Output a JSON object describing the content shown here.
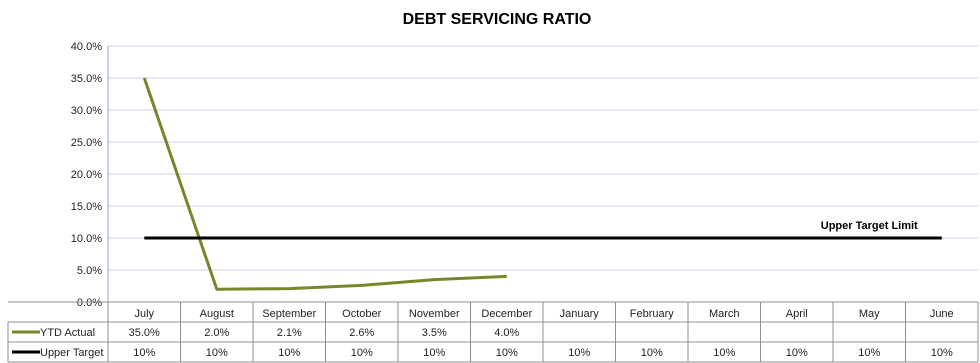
{
  "chart_data": {
    "type": "line",
    "title": "DEBT SERVICING RATIO",
    "categories": [
      "July",
      "August",
      "September",
      "October",
      "November",
      "December",
      "January",
      "February",
      "March",
      "April",
      "May",
      "June"
    ],
    "yticks": [
      "0.0%",
      "5.0%",
      "10.0%",
      "15.0%",
      "20.0%",
      "25.0%",
      "30.0%",
      "35.0%",
      "40.0%"
    ],
    "ylim": [
      0,
      40
    ],
    "grid": true,
    "legend": "data table",
    "series": [
      {
        "name": "YTD Actual",
        "color": "#76872a",
        "values": [
          35.0,
          2.0,
          2.1,
          2.6,
          3.5,
          4.0,
          null,
          null,
          null,
          null,
          null,
          null
        ],
        "labels": [
          "35.0%",
          "2.0%",
          "2.1%",
          "2.6%",
          "3.5%",
          "4.0%",
          "",
          "",
          "",
          "",
          "",
          ""
        ]
      },
      {
        "name": "Upper Target",
        "color": "#000000",
        "values": [
          10,
          10,
          10,
          10,
          10,
          10,
          10,
          10,
          10,
          10,
          10,
          10
        ],
        "labels": [
          "10%",
          "10%",
          "10%",
          "10%",
          "10%",
          "10%",
          "10%",
          "10%",
          "10%",
          "10%",
          "10%",
          "10%"
        ]
      }
    ],
    "annotations": [
      {
        "text": "Upper Target Limit",
        "series": "Upper Target",
        "at_category": "May"
      }
    ]
  }
}
